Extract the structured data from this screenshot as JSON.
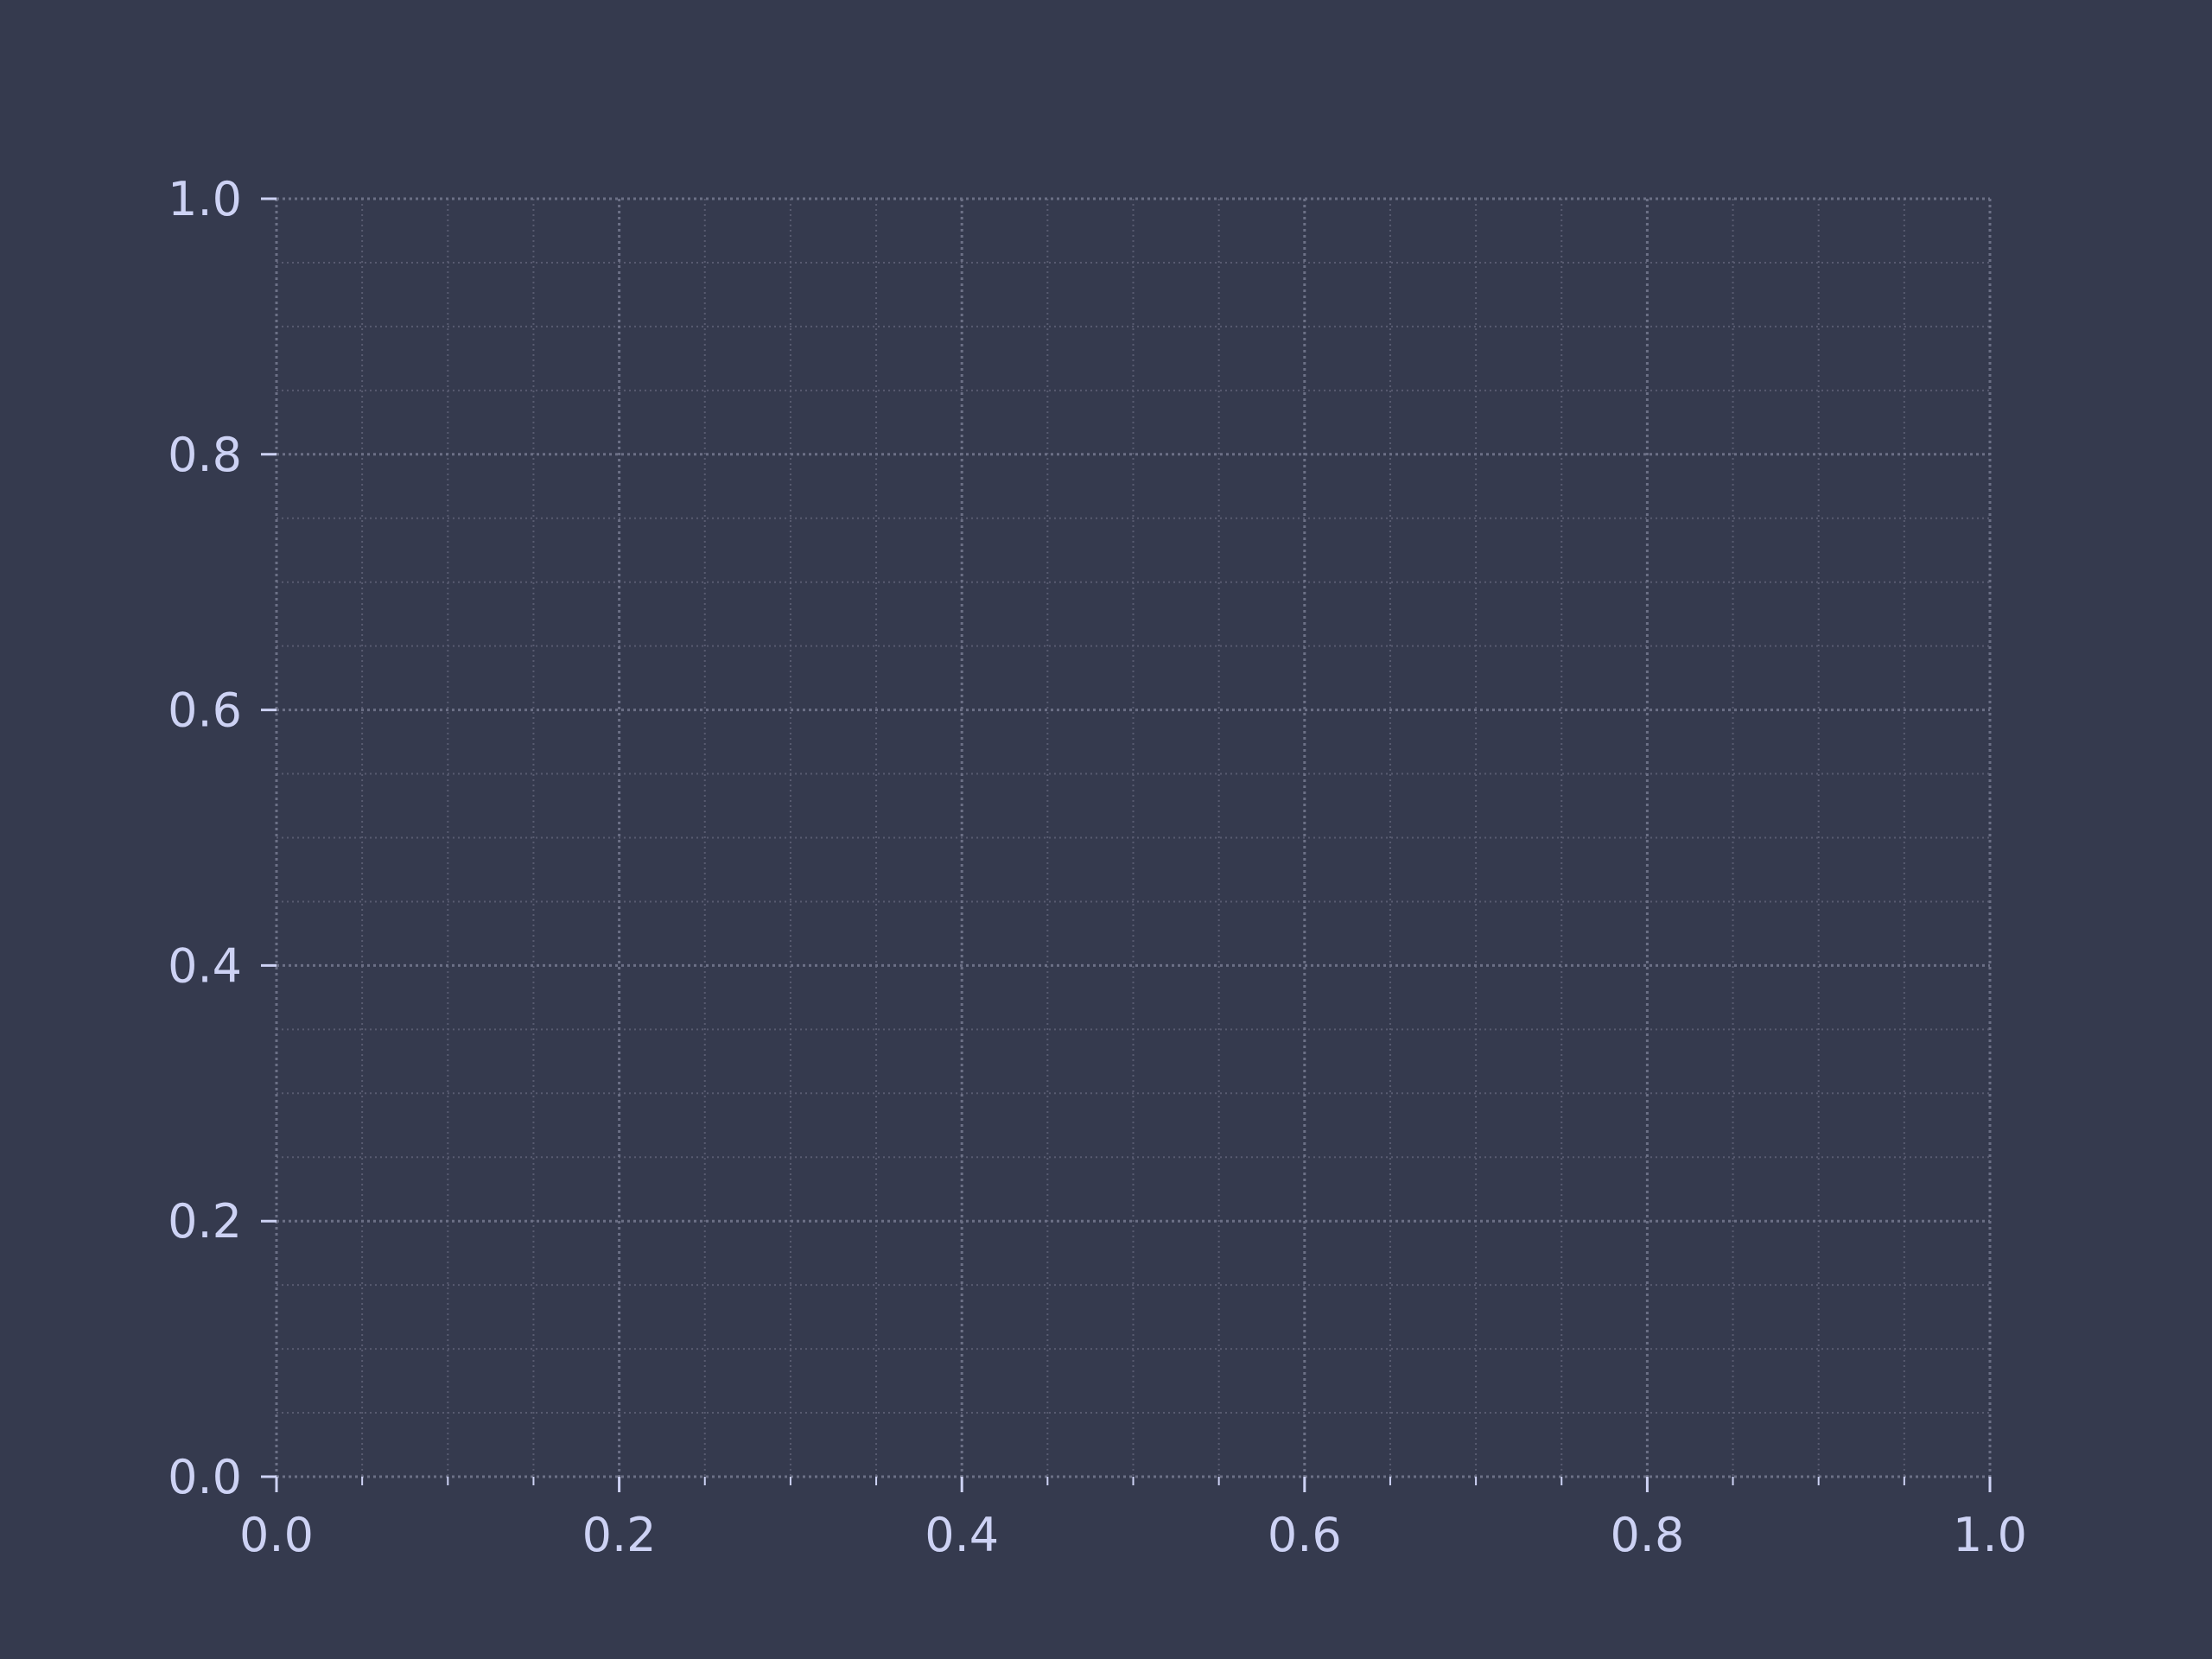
{
  "chart_data": {
    "type": "scatter",
    "title": "",
    "xlabel": "",
    "ylabel": "",
    "xlim": [
      0.0,
      1.0
    ],
    "ylim": [
      0.0,
      1.0
    ],
    "x_ticks": [
      "0.0",
      "0.2",
      "0.4",
      "0.6",
      "0.8",
      "1.0"
    ],
    "y_ticks": [
      "0.0",
      "0.2",
      "0.4",
      "0.6",
      "0.8",
      "1.0"
    ],
    "x_tick_values": [
      0.0,
      0.2,
      0.4,
      0.6,
      0.8,
      1.0
    ],
    "y_tick_values": [
      0.0,
      0.2,
      0.4,
      0.6,
      0.8,
      1.0
    ],
    "minor_step": 0.05,
    "grid": true,
    "grid_style": "dotted",
    "series": []
  },
  "colors": {
    "background": "#353A4E",
    "tick_text": "#CDD2F4",
    "tick_line": "#CDD2F4",
    "major_grid": "#6C7086",
    "minor_grid": "#585B70"
  }
}
